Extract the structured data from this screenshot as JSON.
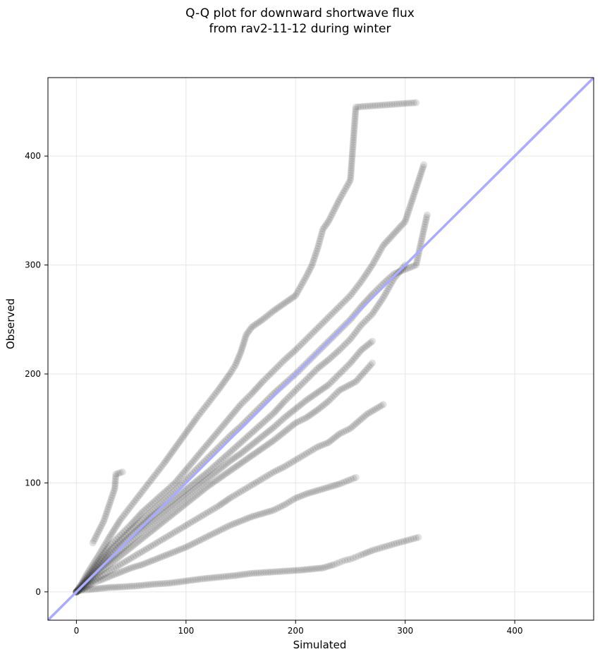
{
  "chart_data": {
    "type": "scatter",
    "title_lines": [
      "Q-Q plot for downward shortwave flux",
      "from rav2-11-12 during winter"
    ],
    "xlabel": "Simulated",
    "ylabel": "Observed",
    "xlim": [
      -26,
      472
    ],
    "ylim": [
      -26,
      472
    ],
    "xticks": [
      0,
      100,
      200,
      300,
      400
    ],
    "yticks": [
      0,
      100,
      200,
      300,
      400
    ],
    "grid": true,
    "point_color": "#333333",
    "point_opacity": 0.15,
    "reference_line": {
      "color": "#aaaaff",
      "from": [
        -26,
        -26
      ],
      "to": [
        472,
        472
      ]
    },
    "series": [
      {
        "values": [
          [
            0,
            0
          ],
          [
            2,
            1
          ],
          [
            5,
            1.5
          ],
          [
            10,
            2
          ],
          [
            20,
            3
          ],
          [
            30,
            4
          ],
          [
            40,
            4.5
          ],
          [
            55,
            5.5
          ],
          [
            70,
            7
          ],
          [
            85,
            8
          ],
          [
            100,
            10
          ],
          [
            115,
            12
          ],
          [
            130,
            13.5
          ],
          [
            145,
            15
          ],
          [
            160,
            17
          ],
          [
            175,
            18
          ],
          [
            190,
            19
          ],
          [
            205,
            20
          ],
          [
            215,
            21
          ],
          [
            225,
            22
          ],
          [
            235,
            25
          ],
          [
            240,
            27
          ],
          [
            245,
            29
          ],
          [
            250,
            30
          ],
          [
            255,
            32
          ],
          [
            260,
            34
          ],
          [
            270,
            38
          ],
          [
            290,
            44
          ],
          [
            312,
            50
          ]
        ]
      },
      {
        "values": [
          [
            0,
            0
          ],
          [
            5,
            2
          ],
          [
            10,
            5
          ],
          [
            15,
            8
          ],
          [
            20,
            10
          ],
          [
            30,
            14
          ],
          [
            40,
            18
          ],
          [
            50,
            22
          ],
          [
            60,
            25
          ],
          [
            70,
            29
          ],
          [
            80,
            33
          ],
          [
            90,
            37
          ],
          [
            100,
            41
          ],
          [
            110,
            46
          ],
          [
            120,
            51
          ],
          [
            130,
            56
          ],
          [
            140,
            61
          ],
          [
            150,
            65
          ],
          [
            160,
            69
          ],
          [
            170,
            72
          ],
          [
            180,
            75
          ],
          [
            190,
            80
          ],
          [
            200,
            86
          ],
          [
            210,
            90
          ],
          [
            220,
            93
          ],
          [
            230,
            96
          ],
          [
            240,
            99
          ],
          [
            255,
            105
          ]
        ]
      },
      {
        "values": [
          [
            0,
            0
          ],
          [
            5,
            3
          ],
          [
            10,
            7
          ],
          [
            20,
            13
          ],
          [
            30,
            19
          ],
          [
            40,
            25
          ],
          [
            50,
            31
          ],
          [
            60,
            37
          ],
          [
            70,
            43
          ],
          [
            80,
            49
          ],
          [
            90,
            55
          ],
          [
            100,
            61
          ],
          [
            110,
            67
          ],
          [
            120,
            73
          ],
          [
            130,
            79
          ],
          [
            140,
            86
          ],
          [
            150,
            92
          ],
          [
            160,
            98
          ],
          [
            170,
            104
          ],
          [
            180,
            110
          ],
          [
            190,
            115
          ],
          [
            200,
            121
          ],
          [
            210,
            127
          ],
          [
            220,
            133
          ],
          [
            230,
            137
          ],
          [
            240,
            145
          ],
          [
            250,
            150
          ],
          [
            265,
            163
          ],
          [
            280,
            172
          ]
        ]
      },
      {
        "values": [
          [
            0,
            0
          ],
          [
            5,
            4
          ],
          [
            10,
            9
          ],
          [
            20,
            17
          ],
          [
            30,
            25
          ],
          [
            40,
            33
          ],
          [
            50,
            41
          ],
          [
            60,
            49
          ],
          [
            70,
            57
          ],
          [
            80,
            65
          ],
          [
            90,
            73
          ],
          [
            100,
            81
          ],
          [
            110,
            89
          ],
          [
            120,
            97
          ],
          [
            130,
            104
          ],
          [
            140,
            111
          ],
          [
            150,
            118
          ],
          [
            160,
            125
          ],
          [
            170,
            132
          ],
          [
            180,
            139
          ],
          [
            190,
            147
          ],
          [
            200,
            155
          ],
          [
            210,
            160
          ],
          [
            220,
            167
          ],
          [
            230,
            175
          ],
          [
            240,
            185
          ],
          [
            255,
            193
          ],
          [
            270,
            210
          ]
        ]
      },
      {
        "values": [
          [
            0,
            0
          ],
          [
            5,
            5
          ],
          [
            10,
            10
          ],
          [
            20,
            20
          ],
          [
            30,
            29
          ],
          [
            40,
            38
          ],
          [
            50,
            47
          ],
          [
            60,
            56
          ],
          [
            70,
            64
          ],
          [
            80,
            72
          ],
          [
            90,
            80
          ],
          [
            100,
            88
          ],
          [
            110,
            96
          ],
          [
            120,
            104
          ],
          [
            130,
            112
          ],
          [
            140,
            120
          ],
          [
            150,
            127
          ],
          [
            160,
            135
          ],
          [
            170,
            143
          ],
          [
            180,
            151
          ],
          [
            190,
            160
          ],
          [
            200,
            168
          ],
          [
            210,
            176
          ],
          [
            220,
            183
          ],
          [
            230,
            190
          ],
          [
            240,
            200
          ],
          [
            250,
            210
          ],
          [
            260,
            222
          ],
          [
            270,
            230
          ]
        ]
      },
      {
        "values": [
          [
            0,
            0
          ],
          [
            5,
            5
          ],
          [
            10,
            11
          ],
          [
            20,
            22
          ],
          [
            30,
            33
          ],
          [
            40,
            43
          ],
          [
            50,
            52
          ],
          [
            60,
            61
          ],
          [
            70,
            70
          ],
          [
            80,
            78
          ],
          [
            90,
            86
          ],
          [
            100,
            94
          ],
          [
            110,
            102
          ],
          [
            120,
            110
          ],
          [
            130,
            119
          ],
          [
            140,
            128
          ],
          [
            150,
            137
          ],
          [
            160,
            146
          ],
          [
            170,
            155
          ],
          [
            180,
            164
          ],
          [
            190,
            175
          ],
          [
            200,
            185
          ],
          [
            210,
            195
          ],
          [
            220,
            205
          ],
          [
            230,
            213
          ],
          [
            240,
            222
          ],
          [
            250,
            232
          ],
          [
            260,
            245
          ],
          [
            270,
            255
          ],
          [
            280,
            270
          ],
          [
            290,
            288
          ],
          [
            300,
            300
          ]
        ]
      },
      {
        "values": [
          [
            0,
            0
          ],
          [
            5,
            6
          ],
          [
            10,
            12
          ],
          [
            20,
            25
          ],
          [
            30,
            37
          ],
          [
            40,
            47
          ],
          [
            50,
            57
          ],
          [
            60,
            66
          ],
          [
            70,
            75
          ],
          [
            80,
            84
          ],
          [
            90,
            93
          ],
          [
            100,
            103
          ],
          [
            110,
            113
          ],
          [
            120,
            123
          ],
          [
            130,
            133
          ],
          [
            140,
            143
          ],
          [
            150,
            152
          ],
          [
            160,
            162
          ],
          [
            170,
            172
          ],
          [
            180,
            182
          ],
          [
            190,
            191
          ],
          [
            200,
            200
          ],
          [
            210,
            210
          ],
          [
            220,
            220
          ],
          [
            230,
            230
          ],
          [
            240,
            240
          ],
          [
            250,
            250
          ],
          [
            260,
            262
          ],
          [
            270,
            273
          ],
          [
            280,
            283
          ],
          [
            290,
            292
          ],
          [
            310,
            300
          ],
          [
            320,
            346
          ]
        ]
      },
      {
        "values": [
          [
            0,
            0
          ],
          [
            5,
            7
          ],
          [
            10,
            14
          ],
          [
            20,
            28
          ],
          [
            30,
            42
          ],
          [
            40,
            52
          ],
          [
            50,
            62
          ],
          [
            60,
            73
          ],
          [
            70,
            82
          ],
          [
            80,
            91
          ],
          [
            90,
            100
          ],
          [
            100,
            112
          ],
          [
            110,
            124
          ],
          [
            120,
            136
          ],
          [
            130,
            148
          ],
          [
            140,
            160
          ],
          [
            150,
            172
          ],
          [
            160,
            182
          ],
          [
            170,
            193
          ],
          [
            180,
            203
          ],
          [
            190,
            213
          ],
          [
            200,
            222
          ],
          [
            210,
            232
          ],
          [
            220,
            242
          ],
          [
            230,
            252
          ],
          [
            240,
            262
          ],
          [
            250,
            272
          ],
          [
            260,
            285
          ],
          [
            270,
            300
          ],
          [
            280,
            318
          ],
          [
            300,
            340
          ],
          [
            317,
            392
          ]
        ]
      },
      {
        "values": [
          [
            0,
            0
          ],
          [
            5,
            8
          ],
          [
            10,
            17
          ],
          [
            20,
            33
          ],
          [
            30,
            50
          ],
          [
            40,
            66
          ],
          [
            50,
            79
          ],
          [
            60,
            92
          ],
          [
            70,
            105
          ],
          [
            80,
            118
          ],
          [
            90,
            132
          ],
          [
            100,
            146
          ],
          [
            110,
            160
          ],
          [
            120,
            173
          ],
          [
            130,
            186
          ],
          [
            140,
            200
          ],
          [
            145,
            208
          ],
          [
            150,
            220
          ],
          [
            155,
            236
          ],
          [
            160,
            243
          ],
          [
            170,
            250
          ],
          [
            180,
            258
          ],
          [
            190,
            265
          ],
          [
            200,
            272
          ],
          [
            210,
            290
          ],
          [
            215,
            300
          ],
          [
            220,
            315
          ],
          [
            225,
            333
          ],
          [
            230,
            340
          ],
          [
            240,
            360
          ],
          [
            250,
            378
          ],
          [
            255,
            445
          ],
          [
            310,
            449
          ]
        ]
      },
      {
        "values": [
          [
            15,
            45
          ],
          [
            20,
            55
          ],
          [
            25,
            65
          ],
          [
            30,
            80
          ],
          [
            35,
            95
          ],
          [
            36,
            108
          ],
          [
            42,
            110
          ]
        ]
      }
    ]
  }
}
